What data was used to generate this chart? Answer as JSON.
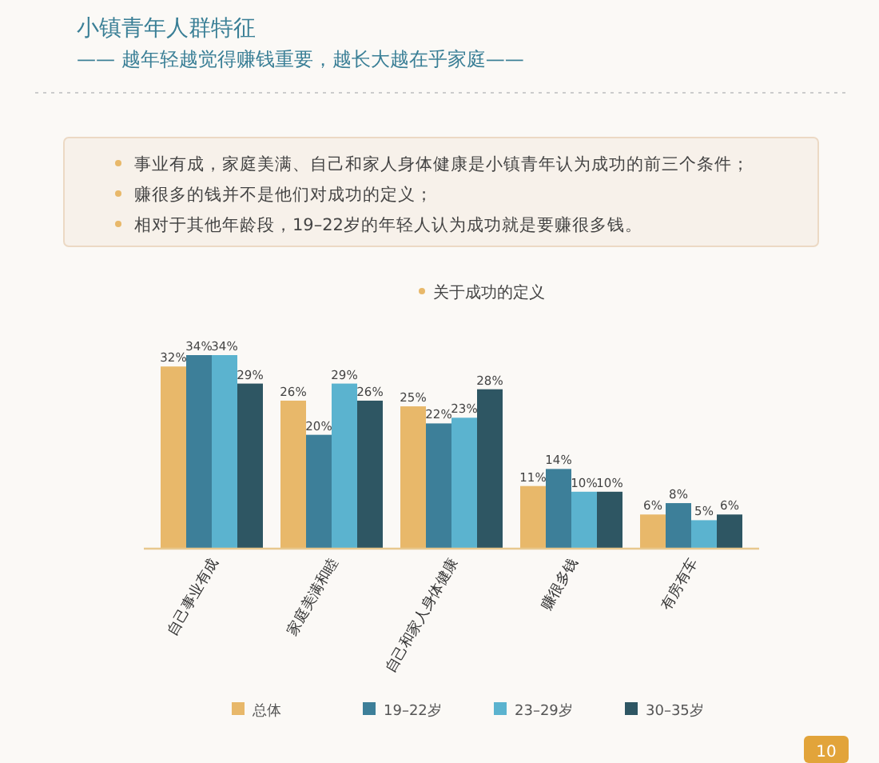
{
  "chart_data": {
    "type": "bar",
    "title": "小镇青年人群特征",
    "subtitle": "—— 越年轻越觉得赚钱重要，越长大越在乎家庭——",
    "annotations": [
      "事业有成，家庭美满、自己和家人身体健康是小镇青年认为成功的前三个条件；",
      "赚很多的钱并不是他们对成功的定义；",
      "相对于其他年龄段，19–22岁的年轻人认为成功就是要赚很多钱。",
      "关于成功的定义",
      "10"
    ],
    "categories": [
      "自己事业有成",
      "家庭美满和睦",
      "自己和家人身体健康",
      "赚很多钱",
      "有房有车"
    ],
    "series": [
      {
        "name": "总体",
        "color": "#e8b86a",
        "values": [
          32,
          26,
          25,
          11,
          6
        ],
        "value_labels": [
          "32%",
          "26%",
          "25%",
          "11%",
          "6%"
        ]
      },
      {
        "name": "19–22岁",
        "color": "#3d7f99",
        "values": [
          34,
          20,
          22,
          14,
          8
        ],
        "value_labels": [
          "34%",
          "20%",
          "22%",
          "14%",
          "8%"
        ]
      },
      {
        "name": "23–29岁",
        "color": "#5bb3cf",
        "values": [
          34,
          29,
          23,
          10,
          5
        ],
        "value_labels": [
          "34%",
          "29%",
          "23%",
          "10%",
          "5%"
        ]
      },
      {
        "name": "30–35岁",
        "color": "#2e5663",
        "values": [
          29,
          26,
          28,
          10,
          6
        ],
        "value_labels": [
          "29%",
          "26%",
          "28%",
          "10%",
          "6%"
        ]
      }
    ],
    "legend": "bottom"
  }
}
